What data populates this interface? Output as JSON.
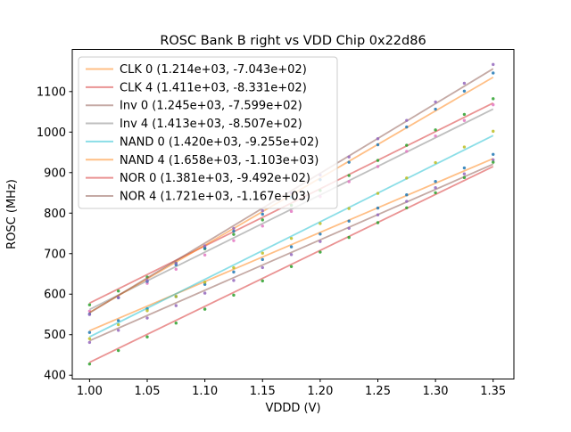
{
  "colors": {
    "background": "#ffffff",
    "spine": "#000000",
    "text": "#000000",
    "legend_border": "#cccccc",
    "legend_fill": "#ffffff"
  },
  "chart_data": {
    "type": "scatter",
    "title": "ROSC Bank B right vs VDD Chip 0x22d86",
    "xlabel": "VDDD (V)",
    "ylabel": "ROSC (MHz)",
    "xlim": [
      0.985,
      1.368
    ],
    "ylim": [
      390.6,
      1204.0
    ],
    "grid": false,
    "legend_position": "upper-left",
    "x_ticks": [
      1.0,
      1.05,
      1.1,
      1.15,
      1.2,
      1.25,
      1.3,
      1.35
    ],
    "x_tick_labels": [
      "1.00",
      "1.05",
      "1.10",
      "1.15",
      "1.20",
      "1.25",
      "1.30",
      "1.35"
    ],
    "y_ticks": [
      400,
      500,
      600,
      700,
      800,
      900,
      1000,
      1100
    ],
    "y_tick_labels": [
      "400",
      "500",
      "600",
      "700",
      "800",
      "900",
      "1000",
      "1100"
    ],
    "fit_x_range": [
      1.0,
      1.35
    ],
    "x": [
      1.0,
      1.025,
      1.05,
      1.075,
      1.1,
      1.125,
      1.15,
      1.175,
      1.2,
      1.225,
      1.25,
      1.275,
      1.3,
      1.325,
      1.35
    ],
    "series": [
      {
        "name": "CLK 0",
        "legend_label": "CLK 0 (1.214e+03, -7.043e+02)",
        "fit_slope": 1214.0,
        "fit_intercept": -704.3,
        "line_color": "#ff7f0e",
        "marker_color": "#1f77b4",
        "values": [
          505.5,
          534.7,
          564.1,
          594.0,
          624.1,
          654.7,
          685.5,
          716.8,
          748.3,
          780.3,
          812.5,
          845.2,
          878.1,
          911.5,
          945.1
        ]
      },
      {
        "name": "CLK 4",
        "legend_label": "CLK 4 (1.411e+03, -8.331e+02)",
        "fit_slope": 1411.0,
        "fit_intercept": -833.1,
        "line_color": "#d62728",
        "marker_color": "#2ca02c",
        "values": [
          573.7,
          607.8,
          642.2,
          676.9,
          712.0,
          747.5,
          783.3,
          819.4,
          855.9,
          892.8,
          930.0,
          967.5,
          1005.4,
          1043.7,
          1082.3
        ]
      },
      {
        "name": "Inv 0",
        "legend_label": "Inv 0 (1.245e+03, -7.599e+02)",
        "fit_slope": 1245.0,
        "fit_intercept": -759.9,
        "line_color": "#8c564b",
        "marker_color": "#9467bd",
        "values": [
          480.9,
          510.8,
          541.1,
          571.7,
          602.6,
          633.9,
          665.6,
          697.6,
          729.9,
          762.6,
          795.7,
          829.1,
          862.8,
          896.9,
          931.4
        ]
      },
      {
        "name": "Inv 4",
        "legend_label": "Inv 4 (1.413e+03, -8.507e+02)",
        "fit_slope": 1413.0,
        "fit_intercept": -850.7,
        "line_color": "#7f7f7f",
        "marker_color": "#e377c2",
        "values": [
          558.1,
          592.2,
          626.7,
          661.5,
          696.6,
          732.1,
          768.0,
          804.2,
          840.7,
          877.6,
          914.9,
          952.5,
          990.4,
          1028.7,
          1067.4
        ]
      },
      {
        "name": "NAND 0",
        "legend_label": "NAND 0 (1.420e+03, -9.255e+02)",
        "fit_slope": 1420.0,
        "fit_intercept": -925.5,
        "line_color": "#17becf",
        "marker_color": "#bcbd22",
        "values": [
          490.3,
          524.6,
          559.2,
          594.2,
          629.5,
          665.2,
          701.2,
          737.6,
          774.3,
          811.4,
          848.8,
          886.6,
          924.7,
          963.2,
          1002.0
        ]
      },
      {
        "name": "NAND 4",
        "legend_label": "NAND 4 (1.658e+03, -1.103e+03)",
        "fit_slope": 1658.0,
        "fit_intercept": -1103.0,
        "line_color": "#ff7f0e",
        "marker_color": "#1f77b4",
        "values": [
          550.8,
          591.1,
          631.6,
          672.6,
          713.8,
          755.5,
          797.4,
          839.8,
          882.4,
          925.5,
          968.8,
          1012.6,
          1056.6,
          1101.1,
          1145.8
        ]
      },
      {
        "name": "NOR 0",
        "legend_label": "NOR 0 (1.381e+03, -9.492e+02)",
        "fit_slope": 1381.0,
        "fit_intercept": -949.2,
        "line_color": "#d62728",
        "marker_color": "#2ca02c",
        "values": [
          427.6,
          460.9,
          494.6,
          528.6,
          562.9,
          597.6,
          632.7,
          668.1,
          703.8,
          739.9,
          776.4,
          813.2,
          850.3,
          887.8,
          925.7
        ]
      },
      {
        "name": "NOR 4",
        "legend_label": "NOR 4 (1.721e+03, -1.167e+03)",
        "fit_slope": 1721.0,
        "fit_intercept": -1167.0,
        "line_color": "#8c564b",
        "marker_color": "#9467bd",
        "values": [
          549.8,
          591.6,
          633.8,
          676.3,
          719.1,
          762.3,
          805.9,
          849.8,
          894.0,
          938.6,
          983.6,
          1028.9,
          1074.5,
          1120.5,
          1166.9
        ]
      }
    ]
  }
}
